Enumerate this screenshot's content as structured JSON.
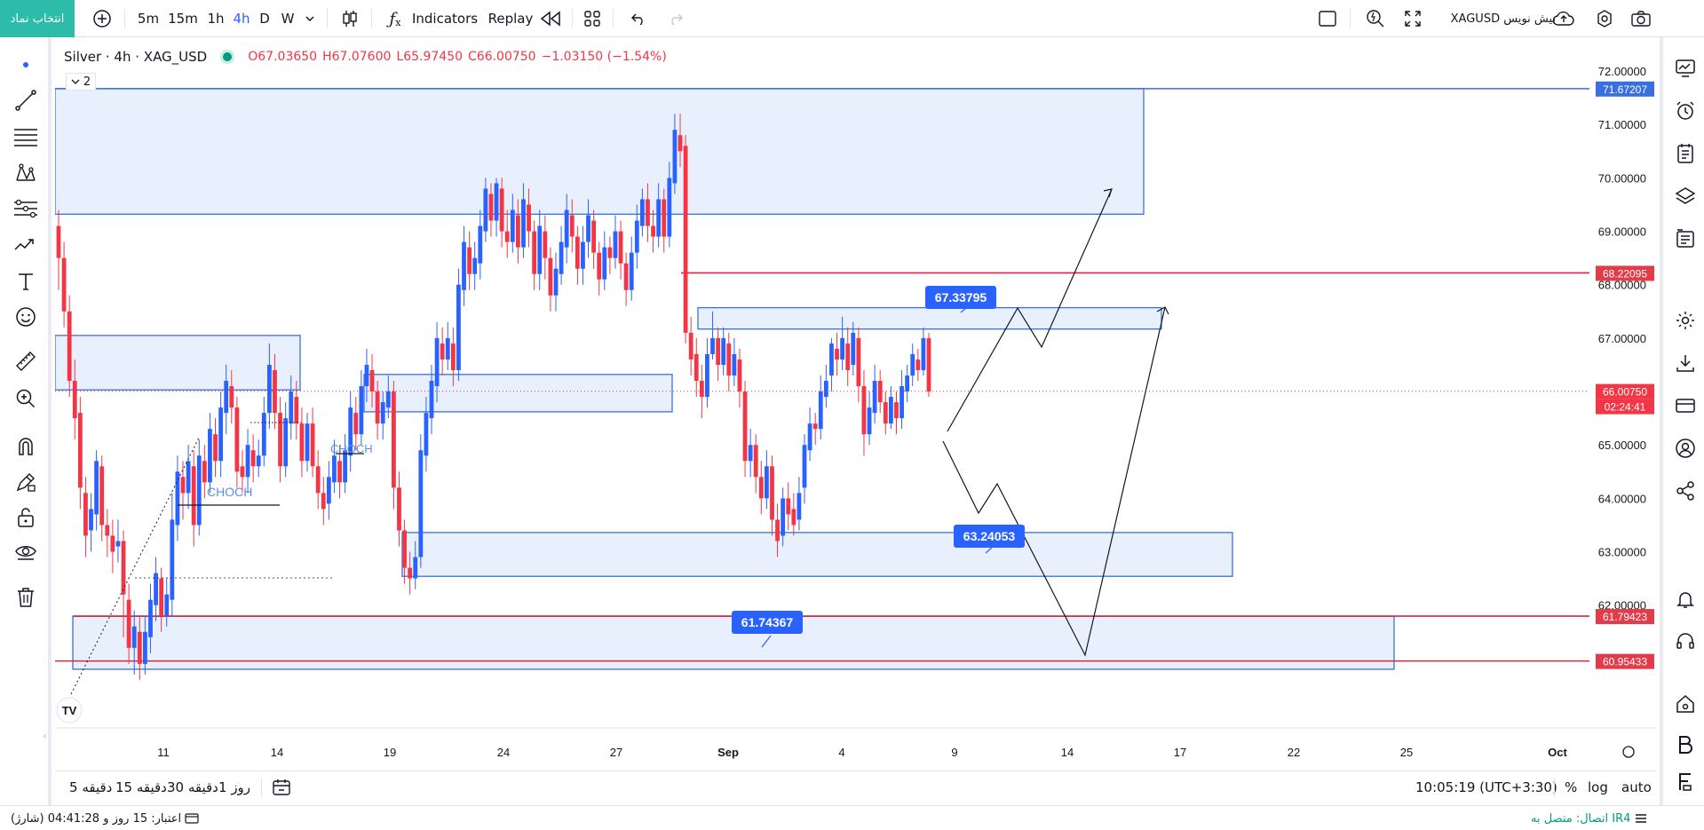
{
  "topbar": {
    "symbol_button": "انتخاب نماد",
    "intervals": [
      "5m",
      "15m",
      "1h",
      "4h",
      "D",
      "W"
    ],
    "active_interval": "4h",
    "indicators_label": "Indicators",
    "replay_label": "Replay",
    "symbol_search": "XAGUSD بیش نویس"
  },
  "legend": {
    "title": "Silver · 4h · XAG_USD",
    "open": "O67.03650",
    "high": "H67.07600",
    "low": "L65.97450",
    "close": "C66.00750",
    "change": "−1.03150 (−1.54%)",
    "collapse_count": "2"
  },
  "price_axis": {
    "ticks": [
      "72.00000",
      "71.00000",
      "70.00000",
      "69.00000",
      "68.00000",
      "67.00000",
      "65.00000",
      "64.00000",
      "63.00000",
      "62.00000"
    ],
    "badges": {
      "top_zone": "71.67207",
      "resistance": "68.22095",
      "last_price": "66.00750",
      "countdown": "02:24:41",
      "support_top": "61.79423",
      "support_bottom": "60.95433"
    }
  },
  "time_axis": {
    "ticks": [
      "11",
      "14",
      "19",
      "24",
      "27",
      "Sep",
      "4",
      "9",
      "14",
      "17",
      "22",
      "25",
      "Oct"
    ]
  },
  "annotations": {
    "label_upper": "67.33795",
    "label_middle": "63.24053",
    "label_lower": "61.74367",
    "choch_left": "CHOCH",
    "choch_right": "CHOCH",
    "logo": "TV"
  },
  "bottombar": {
    "ranges": [
      "5 دقیقه",
      "15 دقیقه",
      "30 دقیقه",
      "1 روز"
    ],
    "clock": "10:05:19 (UTC+3:30)",
    "percent": "%",
    "log": "log",
    "auto": "auto"
  },
  "statusbar": {
    "credit": "اعتبار: 15 روز و 04:41:28 (شارژ)",
    "connection": "اتصال: متصل به IR4"
  },
  "colors": {
    "accent": "#2962ff",
    "up": "#2962ff",
    "down": "#f23645",
    "zone_fill": "#e7eefd",
    "symbol_button": "#2dbca9"
  },
  "chart_data": {
    "type": "candlestick",
    "ylim": [
      60.2,
      72.4
    ],
    "candles": [
      [
        69.1,
        68.5,
        69.4,
        67.9
      ],
      [
        68.5,
        67.5,
        68.8,
        67.2
      ],
      [
        67.5,
        66.2,
        67.8,
        65.9
      ],
      [
        66.2,
        65.5,
        66.6,
        65.1
      ],
      [
        65.6,
        64.2,
        65.9,
        63.8
      ],
      [
        64.1,
        63.3,
        64.4,
        62.9
      ],
      [
        63.4,
        63.8,
        64.1,
        63.0
      ],
      [
        63.7,
        64.7,
        64.9,
        63.4
      ],
      [
        64.6,
        63.5,
        64.8,
        63.2
      ],
      [
        63.5,
        63.3,
        63.8,
        62.9
      ],
      [
        63.3,
        63.0,
        63.6,
        62.6
      ],
      [
        63.1,
        63.2,
        63.6,
        62.8
      ],
      [
        63.2,
        62.2,
        63.4,
        61.4
      ],
      [
        62.1,
        61.2,
        62.4,
        60.9
      ],
      [
        61.2,
        61.6,
        61.9,
        60.7
      ],
      [
        61.5,
        60.9,
        61.8,
        60.6
      ],
      [
        60.9,
        61.5,
        61.8,
        60.7
      ],
      [
        61.4,
        62.1,
        62.4,
        61.1
      ],
      [
        62.0,
        62.6,
        62.9,
        61.7
      ],
      [
        62.5,
        61.8,
        62.7,
        61.5
      ],
      [
        61.8,
        62.2,
        62.5,
        61.6
      ],
      [
        62.1,
        63.6,
        64.1,
        61.8
      ],
      [
        63.5,
        64.5,
        64.8,
        63.2
      ],
      [
        64.4,
        64.1,
        64.7,
        63.6
      ],
      [
        64.1,
        64.7,
        65.0,
        63.8
      ],
      [
        64.6,
        63.5,
        64.9,
        63.1
      ],
      [
        63.5,
        64.8,
        65.1,
        63.3
      ],
      [
        64.7,
        64.3,
        65.0,
        64.0
      ],
      [
        64.3,
        65.3,
        65.6,
        64.1
      ],
      [
        65.2,
        64.7,
        65.5,
        64.4
      ],
      [
        64.7,
        65.7,
        66.0,
        64.4
      ],
      [
        65.6,
        66.2,
        66.5,
        65.2
      ],
      [
        66.1,
        65.7,
        66.4,
        65.4
      ],
      [
        65.7,
        64.5,
        65.9,
        64.2
      ],
      [
        64.6,
        64.4,
        64.9,
        64.1
      ],
      [
        64.4,
        65.0,
        65.3,
        64.1
      ],
      [
        64.9,
        64.6,
        65.2,
        64.3
      ],
      [
        64.6,
        64.8,
        65.1,
        64.4
      ],
      [
        64.8,
        65.6,
        65.9,
        64.6
      ],
      [
        65.6,
        66.5,
        66.9,
        65.3
      ],
      [
        66.4,
        65.6,
        66.7,
        65.3
      ],
      [
        65.6,
        64.6,
        65.9,
        64.3
      ],
      [
        64.6,
        65.5,
        65.8,
        64.4
      ],
      [
        65.4,
        66.0,
        66.3,
        65.1
      ],
      [
        65.9,
        65.4,
        66.2,
        65.1
      ],
      [
        65.4,
        64.7,
        65.7,
        64.4
      ],
      [
        64.7,
        65.4,
        65.6,
        64.5
      ],
      [
        65.4,
        64.6,
        65.7,
        64.4
      ],
      [
        64.6,
        64.1,
        64.9,
        63.8
      ],
      [
        64.1,
        63.8,
        64.4,
        63.5
      ],
      [
        63.9,
        64.4,
        64.7,
        63.6
      ],
      [
        64.3,
        64.8,
        65.1,
        64.1
      ],
      [
        64.7,
        64.3,
        65.0,
        64.0
      ],
      [
        64.3,
        64.9,
        65.2,
        64.1
      ],
      [
        64.8,
        65.7,
        66.0,
        64.5
      ],
      [
        65.6,
        65.2,
        65.9,
        64.9
      ],
      [
        65.2,
        66.1,
        66.4,
        65.0
      ],
      [
        66.1,
        66.5,
        66.8,
        65.8
      ],
      [
        66.4,
        66.0,
        66.7,
        65.7
      ],
      [
        66.0,
        65.4,
        66.2,
        65.1
      ],
      [
        65.4,
        65.8,
        66.0,
        65.1
      ],
      [
        65.7,
        66.0,
        66.3,
        65.5
      ],
      [
        66.0,
        64.2,
        66.2,
        63.8
      ],
      [
        64.2,
        63.4,
        64.5,
        63.1
      ],
      [
        63.4,
        62.7,
        63.6,
        62.4
      ],
      [
        62.7,
        62.5,
        63.0,
        62.2
      ],
      [
        62.5,
        62.9,
        63.2,
        62.3
      ],
      [
        62.9,
        64.9,
        65.2,
        62.7
      ],
      [
        64.8,
        65.6,
        65.9,
        64.5
      ],
      [
        65.5,
        66.2,
        66.5,
        65.2
      ],
      [
        66.1,
        67.0,
        67.3,
        65.8
      ],
      [
        66.9,
        66.6,
        67.2,
        66.3
      ],
      [
        66.6,
        67.0,
        67.3,
        66.4
      ],
      [
        66.9,
        66.4,
        67.2,
        66.1
      ],
      [
        66.4,
        68.0,
        68.3,
        66.2
      ],
      [
        67.9,
        68.8,
        69.1,
        67.6
      ],
      [
        68.7,
        68.2,
        69.0,
        67.9
      ],
      [
        68.2,
        68.5,
        68.8,
        67.9
      ],
      [
        68.4,
        69.1,
        69.4,
        68.1
      ],
      [
        69.0,
        69.8,
        70.0,
        68.8
      ],
      [
        69.7,
        69.2,
        69.9,
        68.9
      ],
      [
        69.2,
        69.9,
        70.0,
        68.9
      ],
      [
        69.8,
        69.0,
        70.0,
        68.7
      ],
      [
        69.0,
        68.8,
        69.4,
        68.5
      ],
      [
        68.8,
        69.4,
        69.7,
        68.6
      ],
      [
        69.3,
        68.7,
        69.6,
        68.4
      ],
      [
        68.7,
        69.6,
        69.9,
        68.5
      ],
      [
        69.5,
        69.0,
        69.8,
        68.7
      ],
      [
        69.0,
        68.2,
        69.2,
        67.9
      ],
      [
        68.2,
        69.1,
        69.4,
        67.9
      ],
      [
        69.0,
        68.5,
        69.3,
        68.1
      ],
      [
        68.5,
        67.8,
        68.7,
        67.5
      ],
      [
        67.8,
        68.3,
        68.6,
        67.5
      ],
      [
        68.2,
        68.8,
        69.1,
        68.0
      ],
      [
        68.7,
        69.4,
        69.7,
        68.4
      ],
      [
        69.3,
        68.9,
        69.6,
        68.6
      ],
      [
        68.9,
        68.3,
        69.1,
        68.0
      ],
      [
        68.3,
        68.8,
        69.1,
        68.0
      ],
      [
        68.8,
        69.3,
        69.6,
        68.5
      ],
      [
        69.2,
        68.6,
        69.4,
        68.3
      ],
      [
        68.6,
        68.1,
        68.8,
        67.8
      ],
      [
        68.1,
        68.7,
        69.0,
        67.9
      ],
      [
        68.7,
        68.5,
        68.9,
        68.2
      ],
      [
        68.5,
        69.0,
        69.3,
        68.3
      ],
      [
        69.0,
        68.4,
        69.2,
        68.1
      ],
      [
        68.4,
        67.9,
        68.6,
        67.6
      ],
      [
        67.9,
        68.6,
        68.9,
        67.7
      ],
      [
        68.6,
        69.2,
        69.5,
        68.3
      ],
      [
        69.1,
        69.6,
        69.8,
        68.9
      ],
      [
        69.6,
        69.1,
        69.9,
        68.8
      ],
      [
        69.1,
        68.9,
        69.4,
        68.6
      ],
      [
        68.9,
        69.6,
        69.9,
        68.7
      ],
      [
        69.6,
        68.9,
        69.8,
        68.6
      ],
      [
        68.9,
        70.0,
        70.3,
        68.7
      ],
      [
        69.9,
        70.9,
        71.2,
        69.7
      ],
      [
        70.8,
        70.5,
        71.2,
        70.2
      ],
      [
        70.6,
        67.1,
        70.8,
        66.9
      ],
      [
        67.1,
        66.6,
        67.4,
        66.3
      ],
      [
        66.7,
        66.2,
        67.0,
        65.9
      ],
      [
        66.2,
        65.9,
        66.5,
        65.5
      ],
      [
        65.9,
        66.7,
        67.0,
        65.7
      ],
      [
        66.7,
        67.0,
        67.5,
        66.6
      ],
      [
        67.0,
        66.5,
        67.2,
        66.2
      ],
      [
        66.5,
        67.0,
        67.2,
        66.3
      ],
      [
        66.9,
        66.3,
        67.1,
        66.0
      ],
      [
        66.3,
        66.7,
        67.0,
        66.1
      ],
      [
        66.6,
        66.0,
        66.8,
        65.7
      ],
      [
        66.0,
        64.7,
        66.2,
        64.4
      ],
      [
        64.7,
        65.0,
        65.3,
        64.4
      ],
      [
        65.0,
        64.4,
        65.2,
        64.1
      ],
      [
        64.4,
        64.0,
        64.7,
        63.7
      ],
      [
        64.0,
        64.6,
        64.9,
        63.8
      ],
      [
        64.6,
        63.6,
        64.8,
        63.3
      ],
      [
        63.6,
        63.2,
        63.9,
        62.9
      ],
      [
        63.3,
        64.0,
        64.2,
        63.1
      ],
      [
        64.0,
        63.7,
        64.3,
        63.4
      ],
      [
        63.8,
        63.5,
        64.1,
        63.3
      ],
      [
        63.6,
        64.1,
        64.4,
        63.4
      ],
      [
        64.2,
        65.0,
        65.2,
        63.9
      ],
      [
        64.9,
        65.4,
        65.7,
        64.7
      ],
      [
        65.4,
        65.3,
        65.6,
        65.0
      ],
      [
        65.3,
        66.0,
        66.3,
        65.1
      ],
      [
        65.9,
        66.2,
        66.5,
        65.7
      ],
      [
        66.3,
        66.9,
        67.0,
        66.0
      ],
      [
        66.8,
        66.6,
        67.1,
        66.3
      ],
      [
        66.6,
        67.0,
        67.4,
        66.4
      ],
      [
        66.9,
        66.4,
        67.2,
        66.1
      ],
      [
        66.5,
        67.1,
        67.3,
        66.3
      ],
      [
        67.0,
        66.1,
        67.2,
        65.8
      ],
      [
        66.1,
        65.2,
        66.4,
        64.8
      ],
      [
        65.2,
        65.7,
        66.0,
        65.0
      ],
      [
        65.6,
        66.2,
        66.5,
        65.4
      ],
      [
        66.2,
        65.8,
        66.4,
        65.6
      ],
      [
        65.8,
        65.4,
        66.0,
        65.2
      ],
      [
        65.4,
        65.9,
        66.1,
        65.3
      ],
      [
        65.8,
        65.5,
        66.0,
        65.2
      ],
      [
        65.5,
        66.1,
        66.4,
        65.3
      ],
      [
        66.0,
        66.3,
        66.5,
        65.8
      ],
      [
        66.3,
        66.7,
        66.9,
        66.1
      ],
      [
        66.6,
        66.4,
        66.8,
        66.2
      ],
      [
        66.4,
        67.0,
        67.2,
        66.3
      ],
      [
        67.0,
        66.0,
        67.1,
        65.9
      ]
    ],
    "zones": [
      {
        "from": 69.32,
        "to": 71.67
      },
      {
        "from": 66.03,
        "to": 67.05
      },
      {
        "from": 65.62,
        "to": 66.32
      },
      {
        "from": 67.17,
        "to": 67.57
      },
      {
        "from": 62.54,
        "to": 63.36
      },
      {
        "from": 60.8,
        "to": 61.79
      }
    ],
    "horizontal_lines": [
      68.22095,
      61.79423,
      60.95433
    ],
    "last_price": 66.0075
  }
}
